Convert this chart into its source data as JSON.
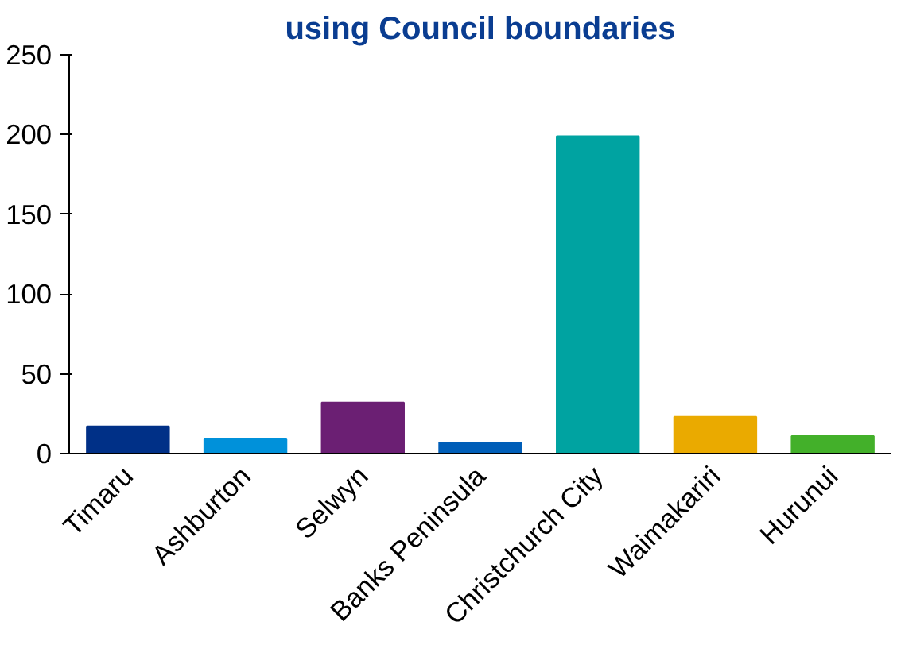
{
  "chart_data": {
    "type": "bar",
    "title": "using Council boundaries",
    "categories": [
      "Timaru",
      "Ashburton",
      "Selwyn",
      "Banks Peninsula",
      "Christchurch City",
      "Waimakariri",
      "Hurunui"
    ],
    "values": [
      17,
      9,
      32,
      7,
      199,
      23,
      11
    ],
    "colors": [
      "#003087",
      "#0091da",
      "#6b1f73",
      "#005eb8",
      "#00a3a1",
      "#eaaa00",
      "#43b02a"
    ],
    "ylim": [
      0,
      250
    ],
    "yticks": [
      0,
      50,
      100,
      150,
      200,
      250
    ],
    "grid": false
  }
}
